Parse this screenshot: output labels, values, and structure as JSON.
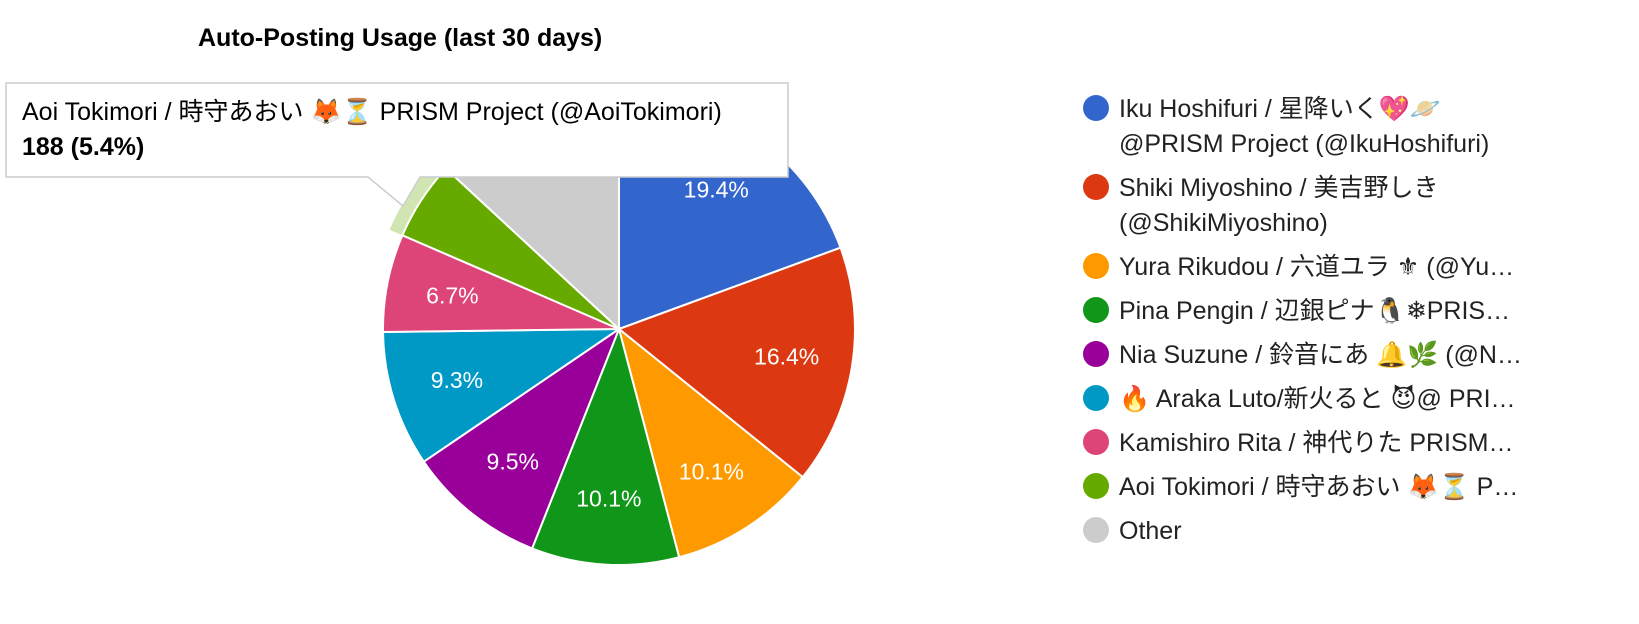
{
  "chart_data": {
    "type": "pie",
    "title": "Auto-Posting Usage (last 30 days)",
    "slices": [
      {
        "label": "Iku Hoshifuri / 星降いく💖🪐 @PRISM Project (@IkuHoshifuri)",
        "legend_lines": [
          "Iku Hoshifuri / 星降いく💖🪐",
          "@PRISM Project (@IkuHoshifuri)"
        ],
        "percent": 19.4,
        "color": "#3366cc",
        "display": "19.4%"
      },
      {
        "label": "Shiki Miyoshino / 美吉野しき (@ShikiMiyoshino)",
        "legend_lines": [
          "Shiki Miyoshino / 美吉野しき",
          "(@ShikiMiyoshino)"
        ],
        "percent": 16.4,
        "color": "#dc3912",
        "display": "16.4%"
      },
      {
        "label": "Yura Rikudou / 六道ユラ ⚜",
        "legend_lines": [
          "Yura Rikudou / 六道ユラ ⚜ (@Yu…"
        ],
        "percent": 10.1,
        "color": "#ff9900",
        "display": "10.1%"
      },
      {
        "label": "Pina Pengin / 辺銀ピナ🐧❄",
        "legend_lines": [
          "Pina Pengin / 辺銀ピナ🐧❄PRIS…"
        ],
        "percent": 10.1,
        "color": "#109618",
        "display": "10.1%"
      },
      {
        "label": "Nia Suzune / 鈴音にあ 🔔🌿",
        "legend_lines": [
          "Nia Suzune / 鈴音にあ 🔔🌿 (@N…"
        ],
        "percent": 9.5,
        "color": "#990099",
        "display": "9.5%"
      },
      {
        "label": "🔥 Araka Luto/新火ると 😈",
        "legend_lines": [
          "🔥 Araka Luto/新火ると 😈@ PRI…"
        ],
        "percent": 9.3,
        "color": "#0099c6",
        "display": "9.3%"
      },
      {
        "label": "Kamishiro Rita / 神代りた PRISM",
        "legend_lines": [
          "Kamishiro Rita / 神代りた PRISM…"
        ],
        "percent": 6.7,
        "color": "#dd4477",
        "display": "6.7%"
      },
      {
        "label": "Aoi Tokimori / 時守あおい 🦊⏳ PRISM Project (@AoiTokimori)",
        "legend_lines": [
          "Aoi Tokimori / 時守あおい 🦊⏳ P…"
        ],
        "percent": 5.4,
        "value": 188,
        "color": "#66aa00",
        "display": ""
      },
      {
        "label": "Other",
        "legend_lines": [
          "Other"
        ],
        "percent": 13.1,
        "color": "#cccccc",
        "display": ""
      }
    ],
    "legend_position": "right",
    "highlighted_slice": 7
  },
  "tooltip": {
    "line1": "Aoi Tokimori / 時守あおい 🦊⏳ PRISM Project (@AoiTokimori)",
    "line2": "188 (5.4%)"
  }
}
